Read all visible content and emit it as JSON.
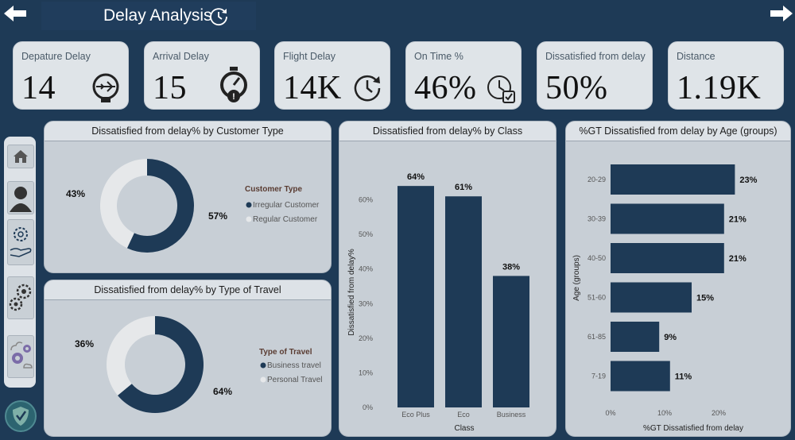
{
  "header": {
    "title": "Delay Analysis"
  },
  "kpis": [
    {
      "label": "Depature Delay",
      "value": "14"
    },
    {
      "label": "Arrival Delay",
      "value": "15"
    },
    {
      "label": "Flight Delay",
      "value": "14K"
    },
    {
      "label": "On Time %",
      "value": "46%"
    },
    {
      "label": "Dissatisfied from delay",
      "value": "50%"
    },
    {
      "label": "Distance",
      "value": "1.19K"
    }
  ],
  "colors": {
    "navy": "#1e3a56",
    "light": "#e6e8ea",
    "panel": "#c8cfd6"
  },
  "chart_data": [
    {
      "type": "pie",
      "title": "Dissatisfied from delay% by Customer Type",
      "legend_title": "Customer Type",
      "legend_position": "right",
      "slices": [
        {
          "name": "Irregular Customer",
          "value": 57,
          "label": "57%",
          "color": "#1e3a56"
        },
        {
          "name": "Regular Customer",
          "value": 43,
          "label": "43%",
          "color": "#e6e8ea"
        }
      ]
    },
    {
      "type": "pie",
      "title": "Dissatisfied from delay% by Type of Travel",
      "legend_title": "Type of Travel",
      "legend_position": "right",
      "slices": [
        {
          "name": "Business travel",
          "value": 64,
          "label": "64%",
          "color": "#1e3a56"
        },
        {
          "name": "Personal Travel",
          "value": 36,
          "label": "36%",
          "color": "#e6e8ea"
        }
      ]
    },
    {
      "type": "bar",
      "title": "Dissatisfied from delay% by Class",
      "categories": [
        "Eco Plus",
        "Eco",
        "Business"
      ],
      "values": [
        64,
        61,
        38
      ],
      "value_labels": [
        "64%",
        "61%",
        "38%"
      ],
      "xlabel": "Class",
      "ylabel": "Dissatisfied from delay%",
      "ylim": [
        0,
        70
      ],
      "yticks": [
        0,
        10,
        20,
        30,
        40,
        50,
        60
      ],
      "ytick_labels": [
        "0%",
        "10%",
        "20%",
        "30%",
        "40%",
        "50%",
        "60%"
      ],
      "grid": false
    },
    {
      "type": "bar",
      "orientation": "horizontal",
      "title": "%GT Dissatisfied from delay by Age (groups)",
      "categories": [
        "20-29",
        "30-39",
        "40-50",
        "51-60",
        "61-85",
        "7-19"
      ],
      "values": [
        23,
        21,
        21,
        15,
        9,
        11
      ],
      "value_labels": [
        "23%",
        "21%",
        "21%",
        "15%",
        "9%",
        "11%"
      ],
      "xlabel": "%GT Dissatisfied from delay",
      "ylabel": "Age (groups)",
      "xlim": [
        0,
        25
      ],
      "xticks": [
        0,
        10,
        20
      ],
      "xtick_labels": [
        "0%",
        "10%",
        "20%"
      ],
      "grid": false
    }
  ]
}
